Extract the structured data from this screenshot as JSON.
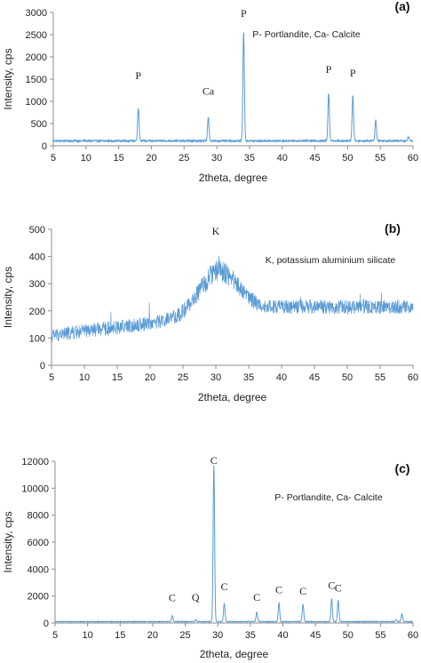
{
  "chart_data": [
    {
      "type": "line",
      "panel_label": "(a)",
      "legend_text": "P- Portlandite, Ca- Calcite",
      "xlabel": "2theta, degree",
      "ylabel": "Intensity, cps",
      "xlim": [
        5,
        60
      ],
      "ylim": [
        0,
        3000
      ],
      "xticks": [
        5,
        10,
        15,
        20,
        25,
        30,
        35,
        40,
        45,
        50,
        55,
        60
      ],
      "yticks": [
        0,
        500,
        1000,
        1500,
        2000,
        2500,
        3000
      ],
      "color": "#5b9bd5",
      "baseline": 110,
      "noise": 18,
      "peaks": [
        {
          "x": 18.0,
          "y": 850,
          "label": "P",
          "label_y": 1500
        },
        {
          "x": 28.7,
          "y": 650,
          "label": "Ca",
          "label_y": 1150
        },
        {
          "x": 34.1,
          "y": 2570,
          "label": "P",
          "label_y": 2900
        },
        {
          "x": 47.1,
          "y": 1190,
          "label": "P",
          "label_y": 1640
        },
        {
          "x": 50.8,
          "y": 1140,
          "label": "P",
          "label_y": 1560
        },
        {
          "x": 54.3,
          "y": 580,
          "label": "",
          "label_y": 0
        },
        {
          "x": 59.3,
          "y": 200,
          "label": "",
          "label_y": 0
        }
      ]
    },
    {
      "type": "line",
      "panel_label": "(b)",
      "legend_text": "K, potassium aluminium silicate",
      "xlabel": "2theta, degree",
      "ylabel": "Intensity, cps",
      "xlim": [
        5,
        60
      ],
      "ylim": [
        0,
        500
      ],
      "xticks": [
        5,
        10,
        15,
        20,
        25,
        30,
        35,
        40,
        45,
        50,
        55,
        60
      ],
      "yticks": [
        0,
        100,
        200,
        300,
        400,
        500
      ],
      "color": "#5b9bd5",
      "noise": 26,
      "hump": {
        "center": 30.5,
        "height": 360,
        "width": 4.2
      },
      "baseline_left": 110,
      "baseline_right": 215,
      "peaks": [
        {
          "x": 30.0,
          "y": 360,
          "label": "K",
          "label_y": 480
        }
      ]
    },
    {
      "type": "line",
      "panel_label": "(c)",
      "legend_text": "P- Portlandite, Ca- Calcite",
      "xlabel": "2theta, degree",
      "ylabel": "Intensity, cps",
      "xlim": [
        5,
        60
      ],
      "ylim": [
        0,
        12000
      ],
      "xticks": [
        5,
        10,
        15,
        20,
        25,
        30,
        35,
        40,
        45,
        50,
        55,
        60
      ],
      "yticks": [
        0,
        2000,
        4000,
        6000,
        8000,
        10000,
        12000
      ],
      "color": "#5b9bd5",
      "baseline": 100,
      "noise": 25,
      "peaks": [
        {
          "x": 23.0,
          "y": 550,
          "label": "C",
          "label_y": 1600
        },
        {
          "x": 26.6,
          "y": 250,
          "label": "Q",
          "label_y": 1650
        },
        {
          "x": 29.4,
          "y": 11700,
          "label": "C",
          "label_y": 11800
        },
        {
          "x": 31.0,
          "y": 1450,
          "label": "C",
          "label_y": 2450
        },
        {
          "x": 36.0,
          "y": 800,
          "label": "C",
          "label_y": 1650
        },
        {
          "x": 39.4,
          "y": 1500,
          "label": "C",
          "label_y": 2200
        },
        {
          "x": 43.1,
          "y": 1400,
          "label": "C",
          "label_y": 2100
        },
        {
          "x": 47.5,
          "y": 1800,
          "label": "C",
          "label_y": 2550
        },
        {
          "x": 48.5,
          "y": 1700,
          "label": "C",
          "label_y": 2350
        },
        {
          "x": 57.4,
          "y": 250,
          "label": "",
          "label_y": 0
        },
        {
          "x": 58.3,
          "y": 700,
          "label": "",
          "label_y": 0
        }
      ]
    }
  ]
}
